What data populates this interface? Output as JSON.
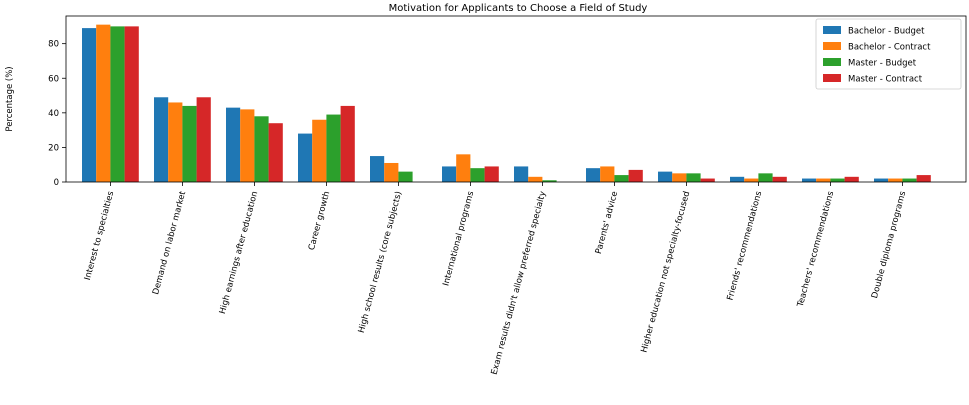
{
  "chart_data": {
    "type": "bar",
    "title": "Motivation for Applicants to Choose a Field of Study",
    "xlabel": "",
    "ylabel": "Percentage (%)",
    "ylim": [
      0,
      96
    ],
    "yticks": [
      0,
      20,
      40,
      60,
      80
    ],
    "grid": false,
    "legend_position": "top-right",
    "categories": [
      "Interest to specialties",
      "Demand on labor market",
      "High earnings after education",
      "Career growth",
      "High school results (core subjects)",
      "International programs",
      "Exam results didn't allow preferred specialty",
      "Parents' advice",
      "Higher education not specialty-focused",
      "Friends' recommendations",
      "Teachers' recommendations",
      "Double diploma programs"
    ],
    "series": [
      {
        "name": "Bachelor - Budget",
        "color": "#1f77b4",
        "values": [
          89,
          49,
          43,
          28,
          15,
          9,
          9,
          8,
          6,
          3,
          2,
          2
        ]
      },
      {
        "name": "Bachelor - Contract",
        "color": "#ff7f0e",
        "values": [
          91,
          46,
          42,
          36,
          11,
          16,
          3,
          9,
          5,
          2,
          2,
          2
        ]
      },
      {
        "name": "Master - Budget",
        "color": "#2ca02c",
        "values": [
          90,
          44,
          38,
          39,
          6,
          8,
          1,
          4,
          5,
          5,
          2,
          2
        ]
      },
      {
        "name": "Master - Contract",
        "color": "#d62728",
        "values": [
          90,
          49,
          34,
          44,
          0,
          9,
          0,
          7,
          2,
          3,
          3,
          4
        ]
      }
    ]
  }
}
